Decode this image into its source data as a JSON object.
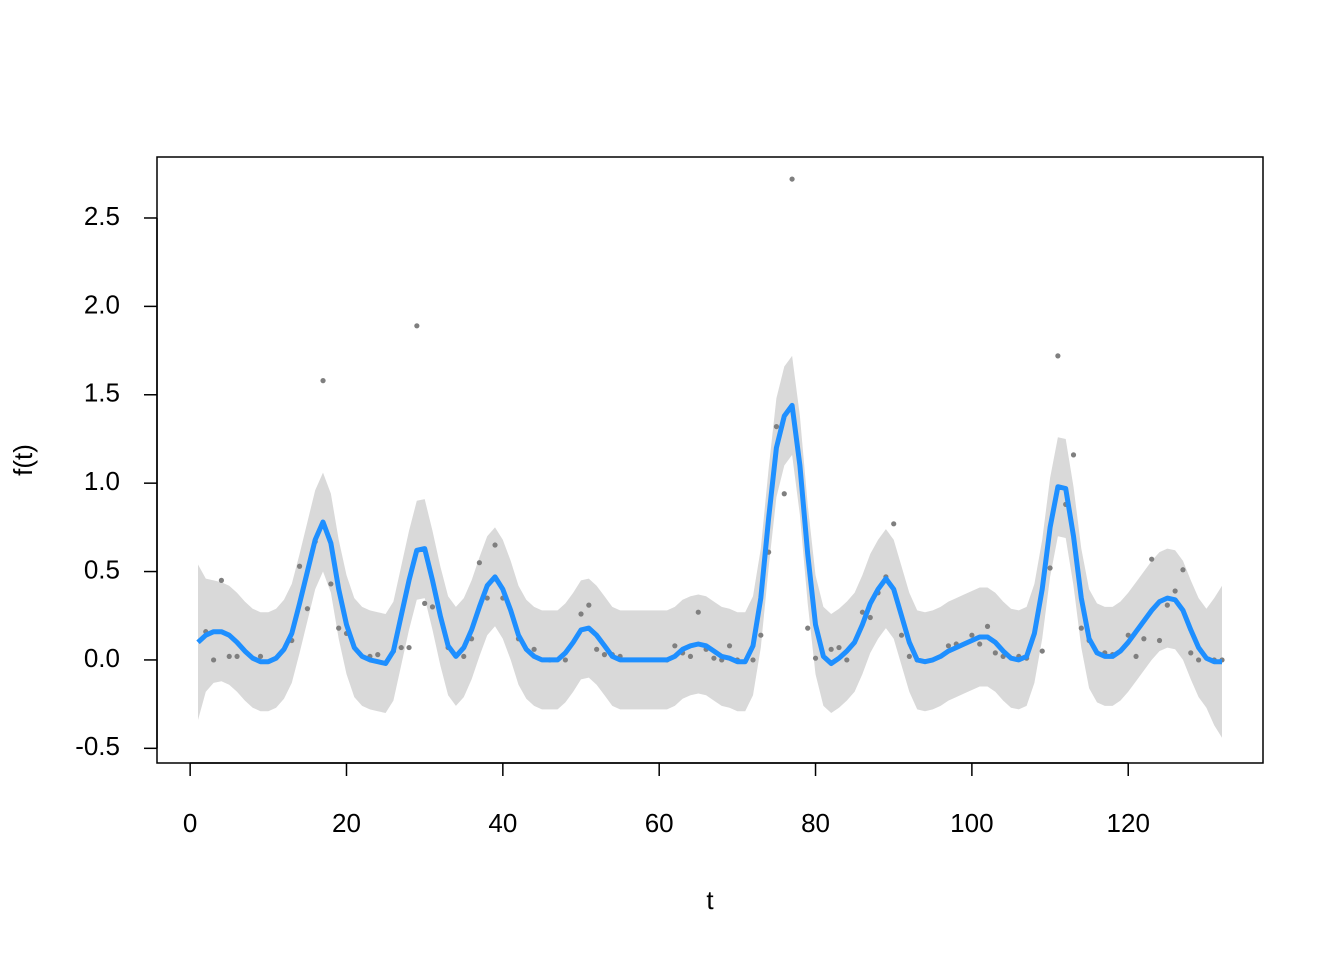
{
  "chart_data": {
    "type": "line",
    "x_label": "t",
    "y_label": "f(t)",
    "xlim": [
      -4.24,
      137.24
    ],
    "ylim": [
      -0.583,
      2.845
    ],
    "xticks": [
      0,
      20,
      40,
      60,
      80,
      100,
      120
    ],
    "yticks": [
      -0.5,
      {
        "value": 0,
        "label": "0.0"
      },
      0.5,
      {
        "value": 1,
        "label": "1.0"
      },
      1.5,
      {
        "value": 2,
        "label": "2.0"
      },
      2.5
    ],
    "x": [
      1,
      2,
      3,
      4,
      5,
      6,
      7,
      8,
      9,
      10,
      11,
      12,
      13,
      14,
      15,
      16,
      17,
      18,
      19,
      20,
      21,
      22,
      23,
      24,
      25,
      26,
      27,
      28,
      29,
      30,
      31,
      32,
      33,
      34,
      35,
      36,
      37,
      38,
      39,
      40,
      41,
      42,
      43,
      44,
      45,
      46,
      47,
      48,
      49,
      50,
      51,
      52,
      53,
      54,
      55,
      56,
      57,
      58,
      59,
      60,
      61,
      62,
      63,
      64,
      65,
      66,
      67,
      68,
      69,
      70,
      71,
      72,
      73,
      74,
      75,
      76,
      77,
      78,
      79,
      80,
      81,
      82,
      83,
      84,
      85,
      86,
      87,
      88,
      89,
      90,
      91,
      92,
      93,
      94,
      95,
      96,
      97,
      98,
      99,
      100,
      101,
      102,
      103,
      104,
      105,
      106,
      107,
      108,
      109,
      110,
      111,
      112,
      113,
      114,
      115,
      116,
      117,
      118,
      119,
      120,
      121,
      122,
      123,
      124,
      125,
      126,
      127,
      128,
      129,
      130,
      131,
      132
    ],
    "band": {
      "color": "#d9d9d9",
      "upper": [
        0.54,
        0.46,
        0.45,
        0.44,
        0.42,
        0.38,
        0.33,
        0.29,
        0.27,
        0.27,
        0.29,
        0.34,
        0.43,
        0.6,
        0.78,
        0.96,
        1.06,
        0.94,
        0.68,
        0.48,
        0.35,
        0.3,
        0.28,
        0.27,
        0.26,
        0.33,
        0.53,
        0.73,
        0.9,
        0.91,
        0.73,
        0.53,
        0.36,
        0.3,
        0.35,
        0.45,
        0.58,
        0.7,
        0.75,
        0.68,
        0.56,
        0.42,
        0.34,
        0.3,
        0.28,
        0.28,
        0.28,
        0.32,
        0.38,
        0.45,
        0.46,
        0.42,
        0.36,
        0.3,
        0.28,
        0.28,
        0.28,
        0.28,
        0.28,
        0.28,
        0.28,
        0.3,
        0.34,
        0.36,
        0.37,
        0.36,
        0.33,
        0.3,
        0.29,
        0.27,
        0.27,
        0.36,
        0.63,
        1.08,
        1.48,
        1.66,
        1.72,
        1.38,
        0.88,
        0.48,
        0.3,
        0.26,
        0.29,
        0.33,
        0.38,
        0.48,
        0.6,
        0.68,
        0.74,
        0.68,
        0.53,
        0.38,
        0.28,
        0.27,
        0.28,
        0.3,
        0.33,
        0.35,
        0.37,
        0.39,
        0.41,
        0.41,
        0.38,
        0.33,
        0.29,
        0.28,
        0.3,
        0.43,
        0.68,
        1.03,
        1.26,
        1.25,
        0.98,
        0.63,
        0.4,
        0.32,
        0.3,
        0.3,
        0.33,
        0.38,
        0.44,
        0.5,
        0.56,
        0.61,
        0.63,
        0.62,
        0.56,
        0.45,
        0.35,
        0.29,
        0.35,
        0.42
      ],
      "lower": [
        -0.34,
        -0.18,
        -0.13,
        -0.12,
        -0.14,
        -0.18,
        -0.23,
        -0.27,
        -0.29,
        -0.29,
        -0.27,
        -0.22,
        -0.13,
        0.04,
        0.22,
        0.4,
        0.5,
        0.38,
        0.12,
        -0.08,
        -0.21,
        -0.26,
        -0.28,
        -0.29,
        -0.3,
        -0.23,
        -0.03,
        0.17,
        0.34,
        0.35,
        0.17,
        -0.03,
        -0.2,
        -0.26,
        -0.21,
        -0.11,
        0.02,
        0.14,
        0.19,
        0.12,
        0.0,
        -0.14,
        -0.22,
        -0.26,
        -0.28,
        -0.28,
        -0.28,
        -0.24,
        -0.18,
        -0.11,
        -0.1,
        -0.14,
        -0.2,
        -0.26,
        -0.28,
        -0.28,
        -0.28,
        -0.28,
        -0.28,
        -0.28,
        -0.28,
        -0.26,
        -0.22,
        -0.2,
        -0.19,
        -0.2,
        -0.23,
        -0.26,
        -0.27,
        -0.29,
        -0.29,
        -0.2,
        0.07,
        0.52,
        0.92,
        1.1,
        1.16,
        0.82,
        0.32,
        -0.08,
        -0.26,
        -0.3,
        -0.27,
        -0.23,
        -0.18,
        -0.08,
        0.04,
        0.12,
        0.18,
        0.12,
        -0.03,
        -0.18,
        -0.28,
        -0.29,
        -0.28,
        -0.26,
        -0.23,
        -0.21,
        -0.19,
        -0.17,
        -0.15,
        -0.15,
        -0.18,
        -0.23,
        -0.27,
        -0.28,
        -0.26,
        -0.13,
        0.12,
        0.47,
        0.7,
        0.69,
        0.42,
        0.07,
        -0.16,
        -0.24,
        -0.26,
        -0.26,
        -0.23,
        -0.18,
        -0.12,
        -0.06,
        0.0,
        0.05,
        0.07,
        0.06,
        0.0,
        -0.11,
        -0.21,
        -0.27,
        -0.37,
        -0.44
      ]
    },
    "series": [
      {
        "color": "#1e8fff",
        "values": [
          0.1,
          0.14,
          0.16,
          0.16,
          0.14,
          0.1,
          0.05,
          0.01,
          -0.01,
          -0.01,
          0.01,
          0.06,
          0.15,
          0.32,
          0.5,
          0.68,
          0.78,
          0.66,
          0.4,
          0.2,
          0.07,
          0.02,
          0.0,
          -0.01,
          -0.02,
          0.05,
          0.25,
          0.45,
          0.62,
          0.63,
          0.45,
          0.25,
          0.08,
          0.02,
          0.07,
          0.17,
          0.3,
          0.42,
          0.47,
          0.4,
          0.28,
          0.14,
          0.06,
          0.02,
          0.0,
          0.0,
          0.0,
          0.04,
          0.1,
          0.17,
          0.18,
          0.14,
          0.08,
          0.02,
          0.0,
          0.0,
          0.0,
          0.0,
          0.0,
          0.0,
          0.0,
          0.02,
          0.06,
          0.08,
          0.09,
          0.08,
          0.05,
          0.02,
          0.01,
          -0.01,
          -0.01,
          0.08,
          0.35,
          0.8,
          1.2,
          1.38,
          1.44,
          1.1,
          0.6,
          0.2,
          0.02,
          -0.02,
          0.01,
          0.05,
          0.1,
          0.2,
          0.32,
          0.4,
          0.46,
          0.4,
          0.25,
          0.1,
          0.0,
          -0.01,
          0.0,
          0.02,
          0.05,
          0.07,
          0.09,
          0.11,
          0.13,
          0.13,
          0.1,
          0.05,
          0.01,
          0.0,
          0.02,
          0.15,
          0.4,
          0.75,
          0.98,
          0.97,
          0.7,
          0.35,
          0.12,
          0.04,
          0.02,
          0.02,
          0.05,
          0.1,
          0.16,
          0.22,
          0.28,
          0.33,
          0.35,
          0.34,
          0.28,
          0.17,
          0.07,
          0.01,
          -0.01,
          -0.01
        ]
      }
    ],
    "points": {
      "color": "#7f7f7f",
      "x": [
        2,
        3,
        4,
        5,
        6,
        9,
        13,
        14,
        15,
        16,
        17,
        18,
        19,
        20,
        23,
        24,
        26,
        27,
        28,
        29,
        30,
        31,
        33,
        35,
        36,
        37,
        38,
        39,
        40,
        42,
        44,
        46,
        48,
        50,
        51,
        52,
        53,
        54,
        55,
        61,
        62,
        63,
        64,
        65,
        66,
        67,
        68,
        69,
        70,
        72,
        73,
        74,
        75,
        76,
        77,
        79,
        80,
        82,
        83,
        84,
        86,
        87,
        88,
        89,
        90,
        91,
        92,
        93,
        97,
        98,
        100,
        101,
        102,
        103,
        104,
        106,
        107,
        109,
        110,
        111,
        112,
        113,
        114,
        115,
        117,
        118,
        120,
        121,
        122,
        123,
        124,
        125,
        126,
        127,
        128,
        129,
        131,
        132
      ],
      "y": [
        0.16,
        0.0,
        0.45,
        0.02,
        0.02,
        0.02,
        0.11,
        0.53,
        0.29,
        0.67,
        1.58,
        0.43,
        0.18,
        0.15,
        0.02,
        0.03,
        0.05,
        0.07,
        0.07,
        1.89,
        0.32,
        0.3,
        0.07,
        0.02,
        0.12,
        0.55,
        0.35,
        0.65,
        0.35,
        0.12,
        0.06,
        0.0,
        0.0,
        0.26,
        0.31,
        0.06,
        0.03,
        0.03,
        0.02,
        0.0,
        0.08,
        0.04,
        0.02,
        0.27,
        0.06,
        0.01,
        0.0,
        0.08,
        0.0,
        0.0,
        0.14,
        0.61,
        1.32,
        0.94,
        2.72,
        0.18,
        0.01,
        0.06,
        0.07,
        0.0,
        0.27,
        0.24,
        0.38,
        0.47,
        0.77,
        0.14,
        0.02,
        0.0,
        0.08,
        0.09,
        0.14,
        0.09,
        0.19,
        0.04,
        0.02,
        0.02,
        0.01,
        0.05,
        0.52,
        1.72,
        0.88,
        1.16,
        0.18,
        0.11,
        0.04,
        0.03,
        0.14,
        0.02,
        0.12,
        0.57,
        0.11,
        0.31,
        0.39,
        0.51,
        0.04,
        0.0,
        0.0,
        0.0
      ]
    }
  }
}
